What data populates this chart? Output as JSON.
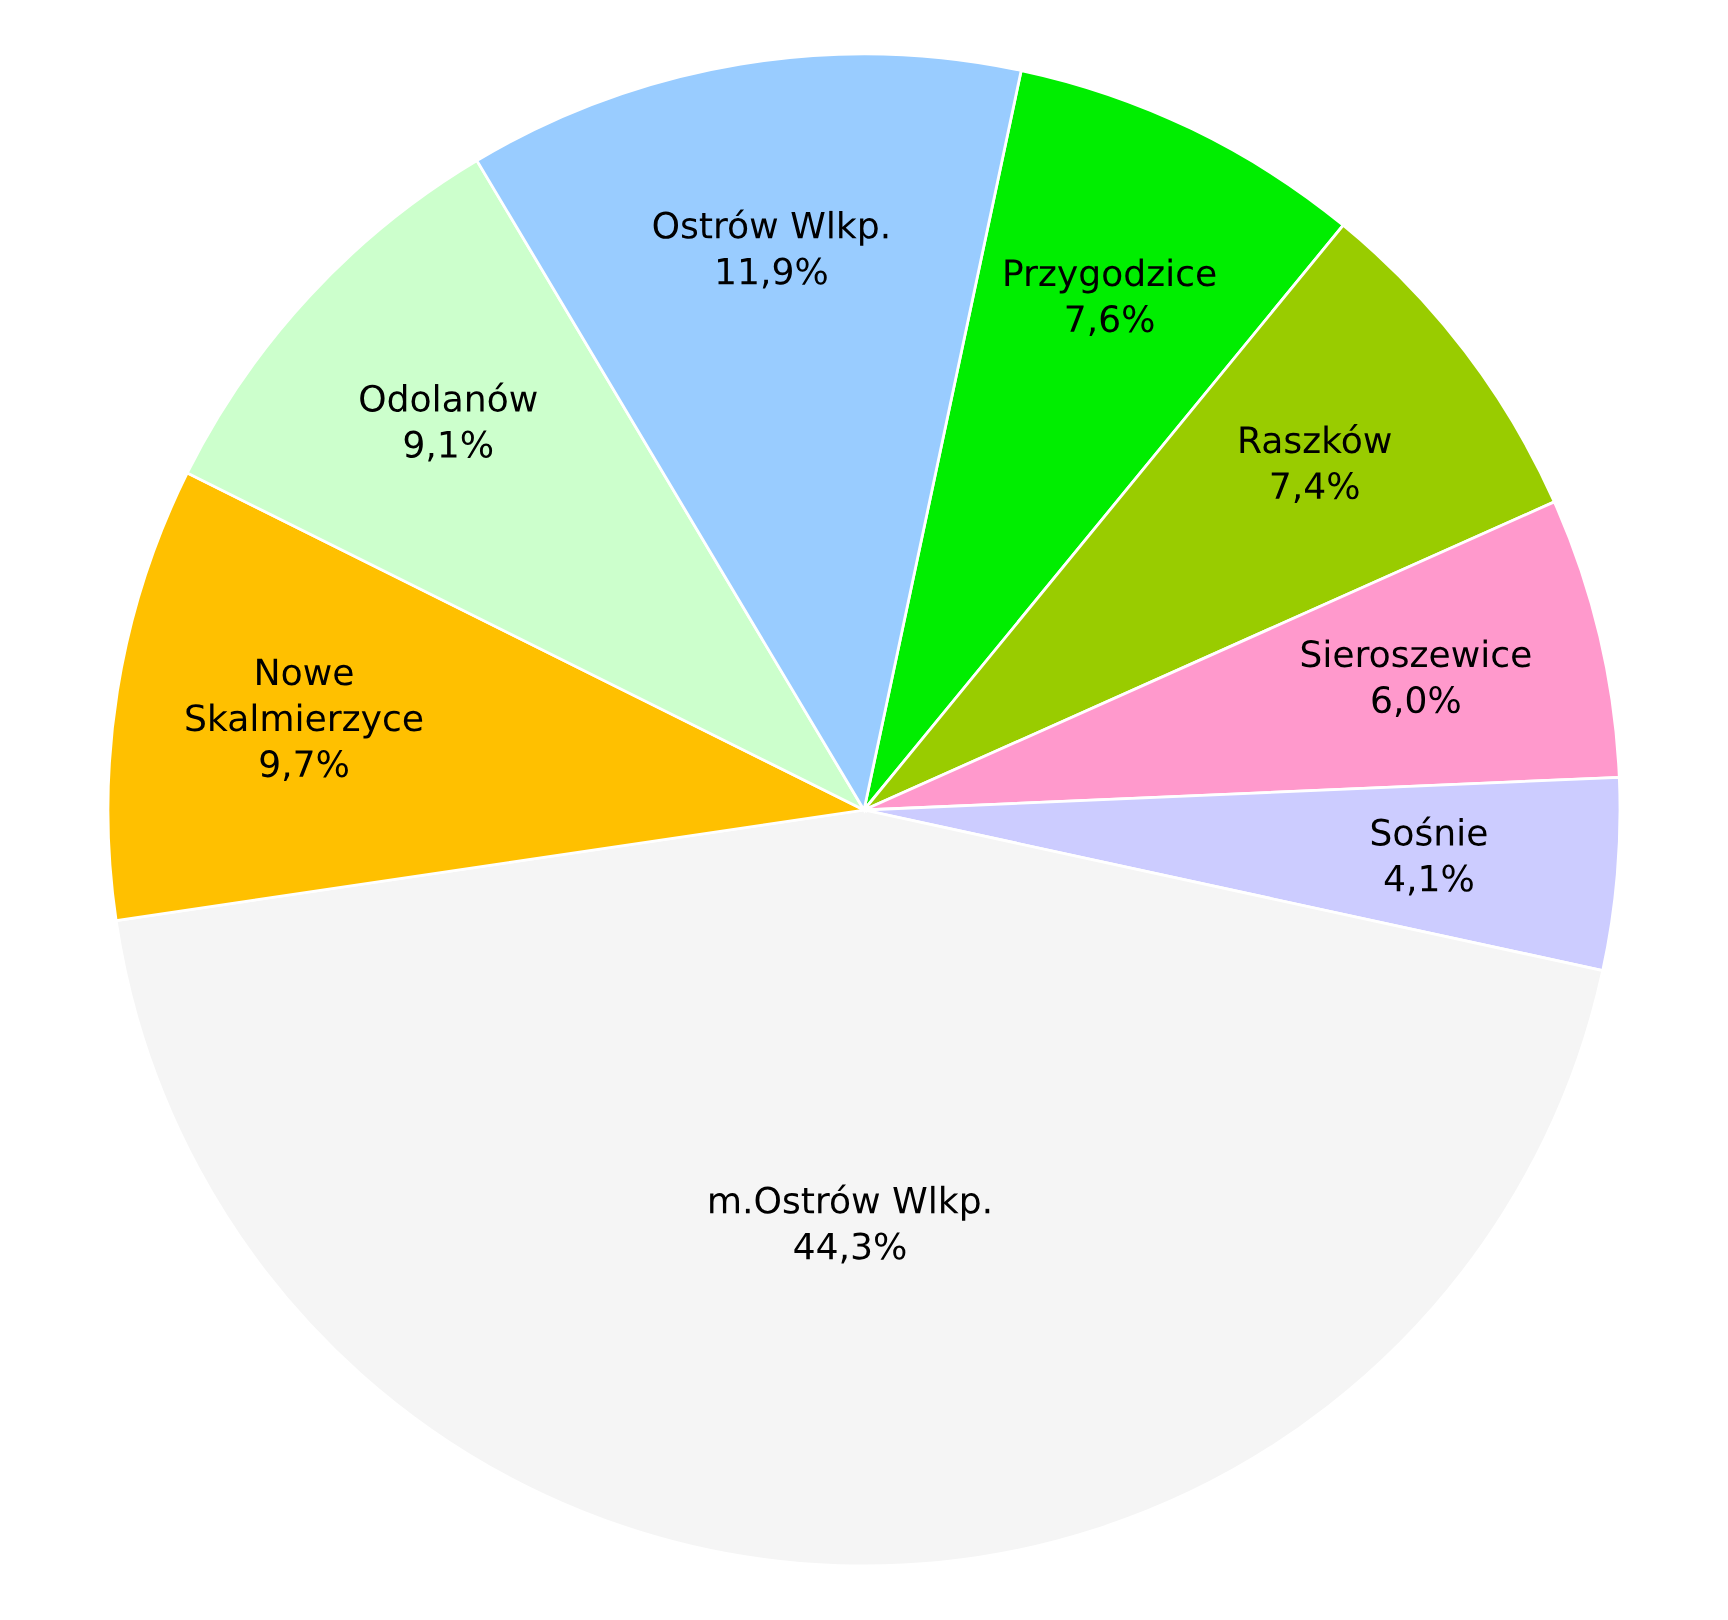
{
  "chart_data": {
    "type": "pie",
    "categories": [
      "Przygodzice",
      "Raszków",
      "Sieroszewice",
      "Sośnie",
      "m.Ostrów Wlkp.",
      "Nowe\nSkalmierzyce",
      "Odolanów",
      "Ostrów Wlkp."
    ],
    "values": [
      7.6,
      7.4,
      6.0,
      4.1,
      44.3,
      9.7,
      9.1,
      11.9
    ],
    "value_labels": [
      "7,6%",
      "7,4%",
      "6,0%",
      "4,1%",
      "44,3%",
      "9,7%",
      "9,1%",
      "11,9%"
    ],
    "colors": [
      "#00ee00",
      "#99cc00",
      "#ff99cc",
      "#ccccff",
      "#f5f5f5",
      "#ffc000",
      "#ccffcc",
      "#99ccff"
    ],
    "legend": false
  }
}
